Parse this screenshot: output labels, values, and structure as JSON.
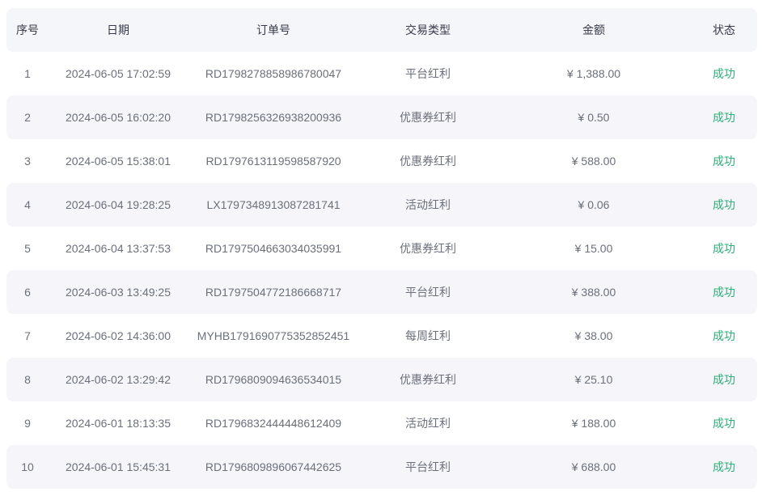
{
  "table": {
    "columns": [
      {
        "key": "index",
        "label": "序号"
      },
      {
        "key": "date",
        "label": "日期"
      },
      {
        "key": "order_no",
        "label": "订单号"
      },
      {
        "key": "type",
        "label": "交易类型"
      },
      {
        "key": "amount",
        "label": "金额"
      },
      {
        "key": "status",
        "label": "状态"
      }
    ],
    "rows": [
      {
        "index": "1",
        "date": "2024-06-05 17:02:59",
        "order_no": "RD1798278858986780047",
        "type": "平台红利",
        "amount": "¥ 1,388.00",
        "status": "成功"
      },
      {
        "index": "2",
        "date": "2024-06-05 16:02:20",
        "order_no": "RD1798256326938200936",
        "type": "优惠券红利",
        "amount": "¥ 0.50",
        "status": "成功"
      },
      {
        "index": "3",
        "date": "2024-06-05 15:38:01",
        "order_no": "RD1797613119598587920",
        "type": "优惠券红利",
        "amount": "¥ 588.00",
        "status": "成功"
      },
      {
        "index": "4",
        "date": "2024-06-04 19:28:25",
        "order_no": "LX1797348913087281741",
        "type": "活动红利",
        "amount": "¥ 0.06",
        "status": "成功"
      },
      {
        "index": "5",
        "date": "2024-06-04 13:37:53",
        "order_no": "RD1797504663034035991",
        "type": "优惠券红利",
        "amount": "¥ 15.00",
        "status": "成功"
      },
      {
        "index": "6",
        "date": "2024-06-03 13:49:25",
        "order_no": "RD1797504772186668717",
        "type": "平台红利",
        "amount": "¥ 388.00",
        "status": "成功"
      },
      {
        "index": "7",
        "date": "2024-06-02 14:36:00",
        "order_no": "MYHB1791690775352852451",
        "type": "每周红利",
        "amount": "¥ 38.00",
        "status": "成功"
      },
      {
        "index": "8",
        "date": "2024-06-02 13:29:42",
        "order_no": "RD1796809094636534015",
        "type": "优惠券红利",
        "amount": "¥ 25.10",
        "status": "成功"
      },
      {
        "index": "9",
        "date": "2024-06-01 18:13:35",
        "order_no": "RD1796832444448612409",
        "type": "活动红利",
        "amount": "¥ 188.00",
        "status": "成功"
      },
      {
        "index": "10",
        "date": "2024-06-01 15:45:31",
        "order_no": "RD1796809896067442625",
        "type": "平台红利",
        "amount": "¥ 688.00",
        "status": "成功"
      }
    ]
  },
  "colors": {
    "header_bg": "#f5f6f9",
    "stripe_bg": "#f6f6fa",
    "header_text": "#363b4a",
    "body_text": "#6a6f7b",
    "success_green": "#2eae77"
  }
}
